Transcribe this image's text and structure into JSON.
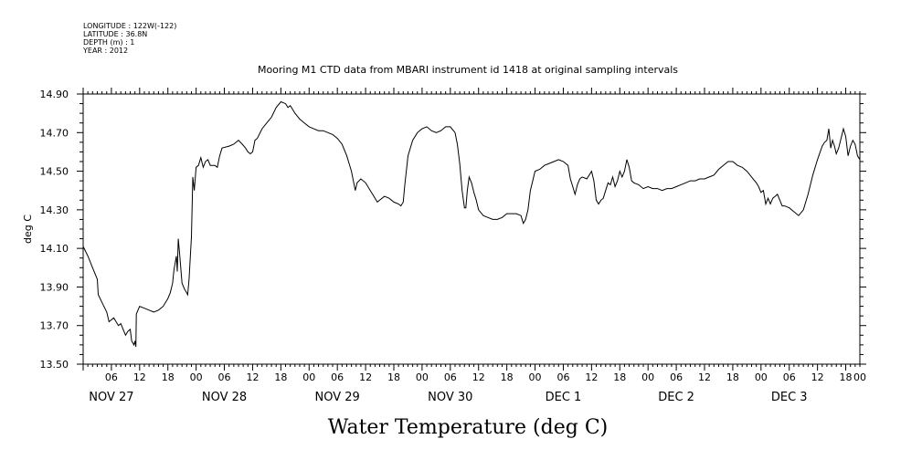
{
  "header": {
    "meta_lines": [
      "LONGITUDE : 122W(-122)",
      "LATITUDE : 36.8N",
      "DEPTH (m) : 1",
      "YEAR : 2012"
    ]
  },
  "chart_data": {
    "type": "line",
    "title": "Mooring M1 CTD data from MBARI instrument id 1418 at original sampling intervals",
    "xlabel": "Water Temperature (deg C)",
    "ylabel": "deg C",
    "xlim": [
      0,
      165
    ],
    "ylim": [
      13.5,
      14.9
    ],
    "y_ticks": [
      "13.50",
      "13.70",
      "13.90",
      "14.10",
      "14.30",
      "14.50",
      "14.70",
      "14.90"
    ],
    "x_hour_ticks": [
      {
        "h": 6,
        "label": "06"
      },
      {
        "h": 12,
        "label": "12"
      },
      {
        "h": 18,
        "label": "18"
      },
      {
        "h": 24,
        "label": "00"
      },
      {
        "h": 30,
        "label": "06"
      },
      {
        "h": 36,
        "label": "12"
      },
      {
        "h": 42,
        "label": "18"
      },
      {
        "h": 48,
        "label": "00"
      },
      {
        "h": 54,
        "label": "06"
      },
      {
        "h": 60,
        "label": "12"
      },
      {
        "h": 66,
        "label": "18"
      },
      {
        "h": 72,
        "label": "00"
      },
      {
        "h": 78,
        "label": "06"
      },
      {
        "h": 84,
        "label": "12"
      },
      {
        "h": 90,
        "label": "18"
      },
      {
        "h": 96,
        "label": "00"
      },
      {
        "h": 102,
        "label": "06"
      },
      {
        "h": 108,
        "label": "12"
      },
      {
        "h": 114,
        "label": "18"
      },
      {
        "h": 120,
        "label": "00"
      },
      {
        "h": 126,
        "label": "06"
      },
      {
        "h": 132,
        "label": "12"
      },
      {
        "h": 138,
        "label": "18"
      },
      {
        "h": 144,
        "label": "00"
      },
      {
        "h": 150,
        "label": "06"
      },
      {
        "h": 156,
        "label": "12"
      },
      {
        "h": 162,
        "label": "18"
      },
      {
        "h": 165,
        "label": "00"
      }
    ],
    "day_labels": [
      {
        "h": 6,
        "label": "NOV 27"
      },
      {
        "h": 30,
        "label": "NOV 28"
      },
      {
        "h": 54,
        "label": "NOV 29"
      },
      {
        "h": 78,
        "label": "NOV 30"
      },
      {
        "h": 102,
        "label": "DEC  1"
      },
      {
        "h": 126,
        "label": "DEC  2"
      },
      {
        "h": 150,
        "label": "DEC  3"
      }
    ],
    "series": [
      {
        "color": "#000000",
        "points": [
          [
            0,
            14.11
          ],
          [
            1,
            14.06
          ],
          [
            2,
            14.0
          ],
          [
            3,
            13.94
          ],
          [
            3.2,
            13.86
          ],
          [
            4,
            13.82
          ],
          [
            5,
            13.77
          ],
          [
            5.5,
            13.72
          ],
          [
            6.5,
            13.74
          ],
          [
            7.5,
            13.7
          ],
          [
            8,
            13.71
          ],
          [
            8.5,
            13.68
          ],
          [
            9,
            13.65
          ],
          [
            9.5,
            13.67
          ],
          [
            10,
            13.68
          ],
          [
            10.3,
            13.62
          ],
          [
            10.8,
            13.6
          ],
          [
            11,
            13.62
          ],
          [
            11.2,
            13.59
          ],
          [
            11.3,
            13.76
          ],
          [
            12,
            13.8
          ],
          [
            13,
            13.79
          ],
          [
            14,
            13.78
          ],
          [
            15,
            13.77
          ],
          [
            16,
            13.78
          ],
          [
            17,
            13.8
          ],
          [
            18,
            13.84
          ],
          [
            18.5,
            13.87
          ],
          [
            19,
            13.92
          ],
          [
            19.3,
            13.99
          ],
          [
            19.8,
            14.06
          ],
          [
            20,
            13.98
          ],
          [
            20.2,
            14.15
          ],
          [
            20.5,
            14.07
          ],
          [
            21,
            13.92
          ],
          [
            21.5,
            13.89
          ],
          [
            22,
            13.87
          ],
          [
            22.2,
            13.86
          ],
          [
            22.5,
            13.94
          ],
          [
            23,
            14.16
          ],
          [
            23.3,
            14.47
          ],
          [
            23.6,
            14.4
          ],
          [
            24,
            14.52
          ],
          [
            24.5,
            14.53
          ],
          [
            25,
            14.57
          ],
          [
            25.5,
            14.52
          ],
          [
            26,
            14.55
          ],
          [
            26.5,
            14.56
          ],
          [
            27,
            14.53
          ],
          [
            28,
            14.53
          ],
          [
            28.5,
            14.52
          ],
          [
            29,
            14.58
          ],
          [
            29.5,
            14.62
          ],
          [
            31,
            14.63
          ],
          [
            32,
            14.64
          ],
          [
            33,
            14.66
          ],
          [
            33.8,
            14.64
          ],
          [
            34.5,
            14.62
          ],
          [
            35,
            14.6
          ],
          [
            35.5,
            14.59
          ],
          [
            36,
            14.6
          ],
          [
            36.5,
            14.66
          ],
          [
            37,
            14.67
          ],
          [
            38,
            14.72
          ],
          [
            39,
            14.75
          ],
          [
            40,
            14.78
          ],
          [
            41,
            14.83
          ],
          [
            42,
            14.86
          ],
          [
            43,
            14.85
          ],
          [
            43.5,
            14.83
          ],
          [
            44,
            14.84
          ],
          [
            45,
            14.8
          ],
          [
            46,
            14.77
          ],
          [
            47,
            14.75
          ],
          [
            48,
            14.73
          ],
          [
            49,
            14.72
          ],
          [
            50,
            14.71
          ],
          [
            51,
            14.71
          ],
          [
            52,
            14.7
          ],
          [
            53,
            14.69
          ],
          [
            54,
            14.67
          ],
          [
            55,
            14.64
          ],
          [
            56,
            14.58
          ],
          [
            57,
            14.5
          ],
          [
            57.8,
            14.4
          ],
          [
            58.2,
            14.44
          ],
          [
            59,
            14.46
          ],
          [
            60,
            14.44
          ],
          [
            61,
            14.4
          ],
          [
            61.5,
            14.38
          ],
          [
            62,
            14.36
          ],
          [
            62.5,
            14.34
          ],
          [
            63,
            14.35
          ],
          [
            64,
            14.37
          ],
          [
            65,
            14.36
          ],
          [
            66,
            14.34
          ],
          [
            67,
            14.33
          ],
          [
            67.5,
            14.32
          ],
          [
            68,
            14.34
          ],
          [
            68.3,
            14.42
          ],
          [
            69,
            14.58
          ],
          [
            70,
            14.66
          ],
          [
            71,
            14.7
          ],
          [
            72,
            14.72
          ],
          [
            73,
            14.73
          ],
          [
            74,
            14.71
          ],
          [
            75,
            14.7
          ],
          [
            76,
            14.71
          ],
          [
            77,
            14.73
          ],
          [
            78,
            14.73
          ],
          [
            79,
            14.7
          ],
          [
            79.5,
            14.64
          ],
          [
            80,
            14.54
          ],
          [
            80.5,
            14.4
          ],
          [
            81,
            14.31
          ],
          [
            81.3,
            14.31
          ],
          [
            81.6,
            14.4
          ],
          [
            82,
            14.47
          ],
          [
            82.5,
            14.44
          ],
          [
            83,
            14.39
          ],
          [
            83.5,
            14.35
          ],
          [
            84,
            14.3
          ],
          [
            85,
            14.27
          ],
          [
            86,
            14.26
          ],
          [
            87,
            14.25
          ],
          [
            88,
            14.25
          ],
          [
            89,
            14.26
          ],
          [
            90,
            14.28
          ],
          [
            91,
            14.28
          ],
          [
            92,
            14.28
          ],
          [
            93,
            14.27
          ],
          [
            93.5,
            14.23
          ],
          [
            94,
            14.25
          ],
          [
            94.5,
            14.3
          ],
          [
            95,
            14.4
          ],
          [
            95.5,
            14.45
          ],
          [
            96,
            14.5
          ],
          [
            97,
            14.51
          ],
          [
            98,
            14.53
          ],
          [
            99,
            14.54
          ],
          [
            100,
            14.55
          ],
          [
            101,
            14.56
          ],
          [
            102,
            14.55
          ],
          [
            103,
            14.53
          ],
          [
            103.5,
            14.46
          ],
          [
            104,
            14.42
          ],
          [
            104.5,
            14.38
          ],
          [
            105,
            14.43
          ],
          [
            105.5,
            14.46
          ],
          [
            106,
            14.47
          ],
          [
            107,
            14.46
          ],
          [
            107.5,
            14.48
          ],
          [
            108,
            14.5
          ],
          [
            108.5,
            14.45
          ],
          [
            109,
            14.35
          ],
          [
            109.5,
            14.33
          ],
          [
            110,
            14.35
          ],
          [
            110.5,
            14.36
          ],
          [
            111,
            14.4
          ],
          [
            111.5,
            14.44
          ],
          [
            112,
            14.43
          ],
          [
            112.5,
            14.47
          ],
          [
            113,
            14.42
          ],
          [
            113.5,
            14.45
          ],
          [
            114,
            14.5
          ],
          [
            114.5,
            14.47
          ],
          [
            115,
            14.5
          ],
          [
            115.5,
            14.56
          ],
          [
            116,
            14.52
          ],
          [
            116.5,
            14.45
          ],
          [
            117,
            14.44
          ],
          [
            118,
            14.43
          ],
          [
            119,
            14.41
          ],
          [
            120,
            14.42
          ],
          [
            121,
            14.41
          ],
          [
            122,
            14.41
          ],
          [
            123,
            14.4
          ],
          [
            124,
            14.41
          ],
          [
            125,
            14.41
          ],
          [
            126,
            14.42
          ],
          [
            127,
            14.43
          ],
          [
            128,
            14.44
          ],
          [
            129,
            14.45
          ],
          [
            130,
            14.45
          ],
          [
            131,
            14.46
          ],
          [
            132,
            14.46
          ],
          [
            133,
            14.47
          ],
          [
            134,
            14.48
          ],
          [
            135,
            14.51
          ],
          [
            136,
            14.53
          ],
          [
            137,
            14.55
          ],
          [
            138,
            14.55
          ],
          [
            139,
            14.53
          ],
          [
            140,
            14.52
          ],
          [
            141,
            14.5
          ],
          [
            142,
            14.47
          ],
          [
            143,
            14.44
          ],
          [
            143.5,
            14.42
          ],
          [
            144,
            14.39
          ],
          [
            144.5,
            14.4
          ],
          [
            145,
            14.33
          ],
          [
            145.5,
            14.36
          ],
          [
            146,
            14.33
          ],
          [
            146.5,
            14.36
          ],
          [
            147,
            14.37
          ],
          [
            147.5,
            14.38
          ],
          [
            148,
            14.35
          ],
          [
            148.5,
            14.32
          ],
          [
            149,
            14.32
          ],
          [
            150,
            14.31
          ],
          [
            151,
            14.29
          ],
          [
            152,
            14.27
          ],
          [
            153,
            14.3
          ],
          [
            154,
            14.38
          ],
          [
            155,
            14.48
          ],
          [
            156,
            14.56
          ],
          [
            157,
            14.63
          ],
          [
            157.5,
            14.65
          ],
          [
            158,
            14.66
          ],
          [
            158.4,
            14.72
          ],
          [
            158.8,
            14.62
          ],
          [
            159.2,
            14.66
          ],
          [
            159.6,
            14.63
          ],
          [
            160,
            14.59
          ],
          [
            160.5,
            14.62
          ],
          [
            161,
            14.67
          ],
          [
            161.5,
            14.72
          ],
          [
            162,
            14.68
          ],
          [
            162.5,
            14.58
          ],
          [
            163,
            14.63
          ],
          [
            163.5,
            14.66
          ],
          [
            164,
            14.64
          ],
          [
            164.5,
            14.58
          ],
          [
            165,
            14.56
          ]
        ]
      }
    ]
  }
}
